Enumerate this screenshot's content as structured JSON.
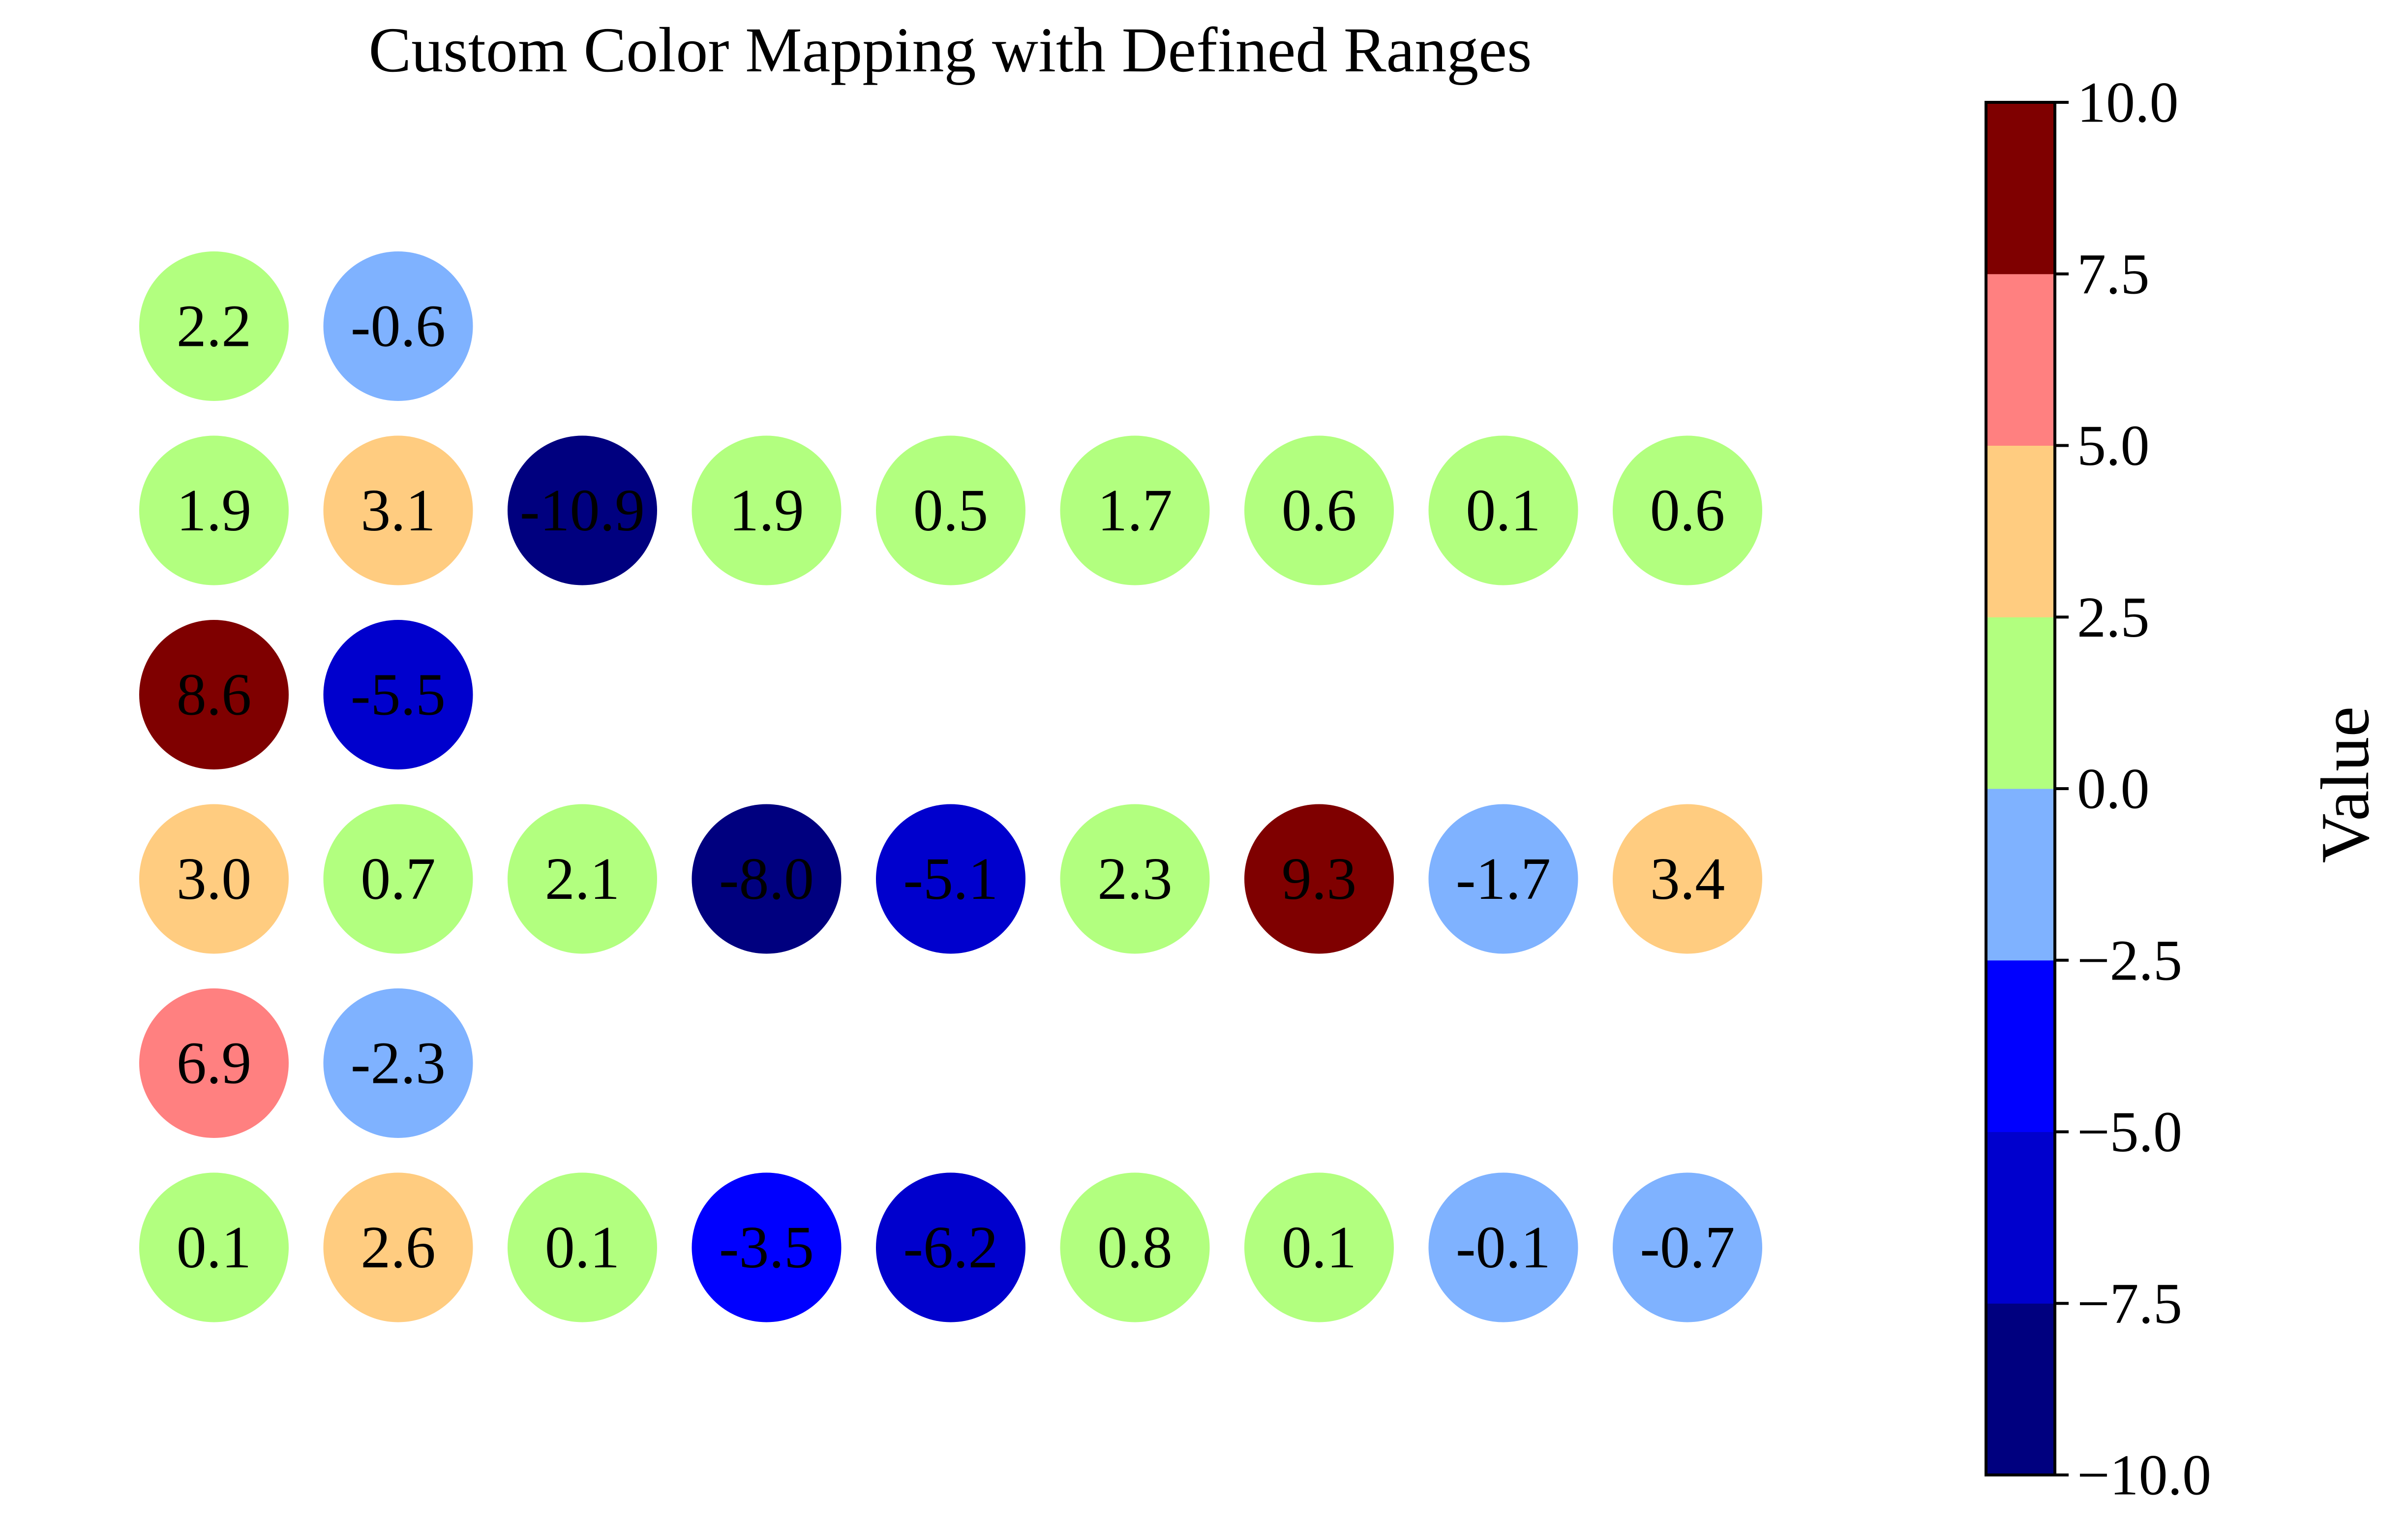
{
  "chart_data": {
    "type": "scatter",
    "title": "Custom Color Mapping with Defined Ranges",
    "xlabel": "",
    "ylabel": "",
    "grid": false,
    "rows": [
      [
        2.2,
        -0.6
      ],
      [
        1.9,
        3.1,
        -10.9,
        1.9,
        0.5,
        1.7,
        0.6,
        0.1,
        0.6
      ],
      [
        8.6,
        -5.5
      ],
      [
        3.0,
        0.7,
        2.1,
        -8.0,
        -5.1,
        2.3,
        9.3,
        -1.7,
        3.4
      ],
      [
        6.9,
        -2.3
      ],
      [
        0.1,
        2.6,
        0.1,
        -3.5,
        -6.2,
        0.8,
        0.1,
        -0.1,
        -0.7
      ]
    ],
    "colorbar": {
      "label": "Value",
      "ticks": [
        "10.0",
        "7.5",
        "5.0",
        "2.5",
        "0.0",
        "−2.5",
        "−5.0",
        "−7.5",
        "−10.0"
      ],
      "boundaries": [
        -10,
        -7.5,
        -5,
        -2.5,
        0,
        2.5,
        5,
        7.5,
        10
      ],
      "colors": [
        "#00007f",
        "#0000cd",
        "#0000ff",
        "#7fb2ff",
        "#b2ff7f",
        "#ffcc80",
        "#ff8080",
        "#7f0000"
      ]
    }
  }
}
